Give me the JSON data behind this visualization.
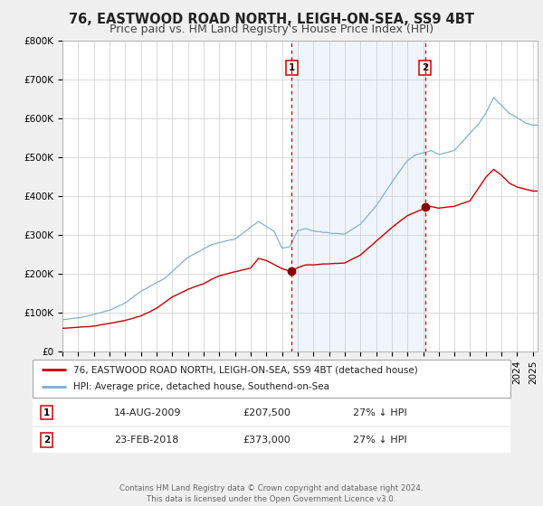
{
  "title": "76, EASTWOOD ROAD NORTH, LEIGH-ON-SEA, SS9 4BT",
  "subtitle": "Price paid vs. HM Land Registry's House Price Index (HPI)",
  "ylim": [
    0,
    800000
  ],
  "yticks": [
    0,
    100000,
    200000,
    300000,
    400000,
    500000,
    600000,
    700000,
    800000
  ],
  "ytick_labels": [
    "£0",
    "£100K",
    "£200K",
    "£300K",
    "£400K",
    "£500K",
    "£600K",
    "£700K",
    "£800K"
  ],
  "xlim_start": 1995.0,
  "xlim_end": 2025.3,
  "sale1_date": 2009.617,
  "sale1_price": 207500,
  "sale2_date": 2018.14,
  "sale2_price": 373000,
  "sale1_date_str": "14-AUG-2009",
  "sale1_price_str": "£207,500",
  "sale1_hpi_str": "27% ↓ HPI",
  "sale2_date_str": "23-FEB-2018",
  "sale2_price_str": "£373,000",
  "sale2_hpi_str": "27% ↓ HPI",
  "red_line_color": "#cc0000",
  "blue_line_color": "#7aadd4",
  "blue_fill_color": "#ddeeff",
  "marker_color": "#880000",
  "dashed_line_color": "#cc0000",
  "background_color": "#f0f0f0",
  "plot_bg_color": "#ffffff",
  "grid_color": "#cccccc",
  "title_fontsize": 10.5,
  "subtitle_fontsize": 9,
  "tick_fontsize": 7.5,
  "footer_text": "Contains HM Land Registry data © Crown copyright and database right 2024.\nThis data is licensed under the Open Government Licence v3.0.",
  "legend_line1": "76, EASTWOOD ROAD NORTH, LEIGH-ON-SEA, SS9 4BT (detached house)",
  "legend_line2": "HPI: Average price, detached house, Southend-on-Sea",
  "hpi_keypoints": [
    [
      1995.0,
      82000
    ],
    [
      1996.0,
      86000
    ],
    [
      1997.0,
      97000
    ],
    [
      1998.0,
      108000
    ],
    [
      1999.0,
      128000
    ],
    [
      2000.0,
      158000
    ],
    [
      2001.5,
      190000
    ],
    [
      2003.0,
      245000
    ],
    [
      2004.5,
      278000
    ],
    [
      2006.0,
      292000
    ],
    [
      2007.5,
      338000
    ],
    [
      2008.5,
      312000
    ],
    [
      2009.0,
      268000
    ],
    [
      2009.5,
      272000
    ],
    [
      2010.0,
      312000
    ],
    [
      2010.5,
      318000
    ],
    [
      2011.0,
      312000
    ],
    [
      2012.0,
      307000
    ],
    [
      2013.0,
      302000
    ],
    [
      2014.0,
      328000
    ],
    [
      2015.0,
      375000
    ],
    [
      2016.0,
      435000
    ],
    [
      2017.0,
      492000
    ],
    [
      2017.5,
      507000
    ],
    [
      2018.0,
      512000
    ],
    [
      2018.5,
      518000
    ],
    [
      2019.0,
      508000
    ],
    [
      2020.0,
      518000
    ],
    [
      2021.0,
      562000
    ],
    [
      2021.5,
      582000
    ],
    [
      2022.0,
      612000
    ],
    [
      2022.5,
      652000
    ],
    [
      2023.0,
      632000
    ],
    [
      2023.5,
      612000
    ],
    [
      2024.0,
      602000
    ],
    [
      2024.5,
      588000
    ],
    [
      2025.0,
      582000
    ]
  ],
  "red_keypoints": [
    [
      1995.0,
      60000
    ],
    [
      1996.0,
      62000
    ],
    [
      1997.0,
      65000
    ],
    [
      1998.0,
      72000
    ],
    [
      1999.0,
      80000
    ],
    [
      2000.0,
      90000
    ],
    [
      2001.0,
      110000
    ],
    [
      2002.0,
      140000
    ],
    [
      2003.0,
      160000
    ],
    [
      2004.0,
      175000
    ],
    [
      2005.0,
      195000
    ],
    [
      2006.0,
      205000
    ],
    [
      2007.0,
      215000
    ],
    [
      2007.5,
      240000
    ],
    [
      2008.0,
      235000
    ],
    [
      2008.5,
      225000
    ],
    [
      2009.0,
      215000
    ],
    [
      2009.617,
      207500
    ],
    [
      2010.0,
      218000
    ],
    [
      2010.5,
      225000
    ],
    [
      2011.0,
      225000
    ],
    [
      2012.0,
      228000
    ],
    [
      2013.0,
      230000
    ],
    [
      2014.0,
      250000
    ],
    [
      2015.0,
      285000
    ],
    [
      2016.0,
      320000
    ],
    [
      2017.0,
      350000
    ],
    [
      2018.0,
      368000
    ],
    [
      2018.14,
      373000
    ],
    [
      2018.5,
      375000
    ],
    [
      2019.0,
      370000
    ],
    [
      2020.0,
      375000
    ],
    [
      2021.0,
      390000
    ],
    [
      2021.5,
      420000
    ],
    [
      2022.0,
      450000
    ],
    [
      2022.5,
      470000
    ],
    [
      2023.0,
      455000
    ],
    [
      2023.5,
      435000
    ],
    [
      2024.0,
      425000
    ],
    [
      2024.5,
      420000
    ],
    [
      2025.0,
      415000
    ]
  ]
}
